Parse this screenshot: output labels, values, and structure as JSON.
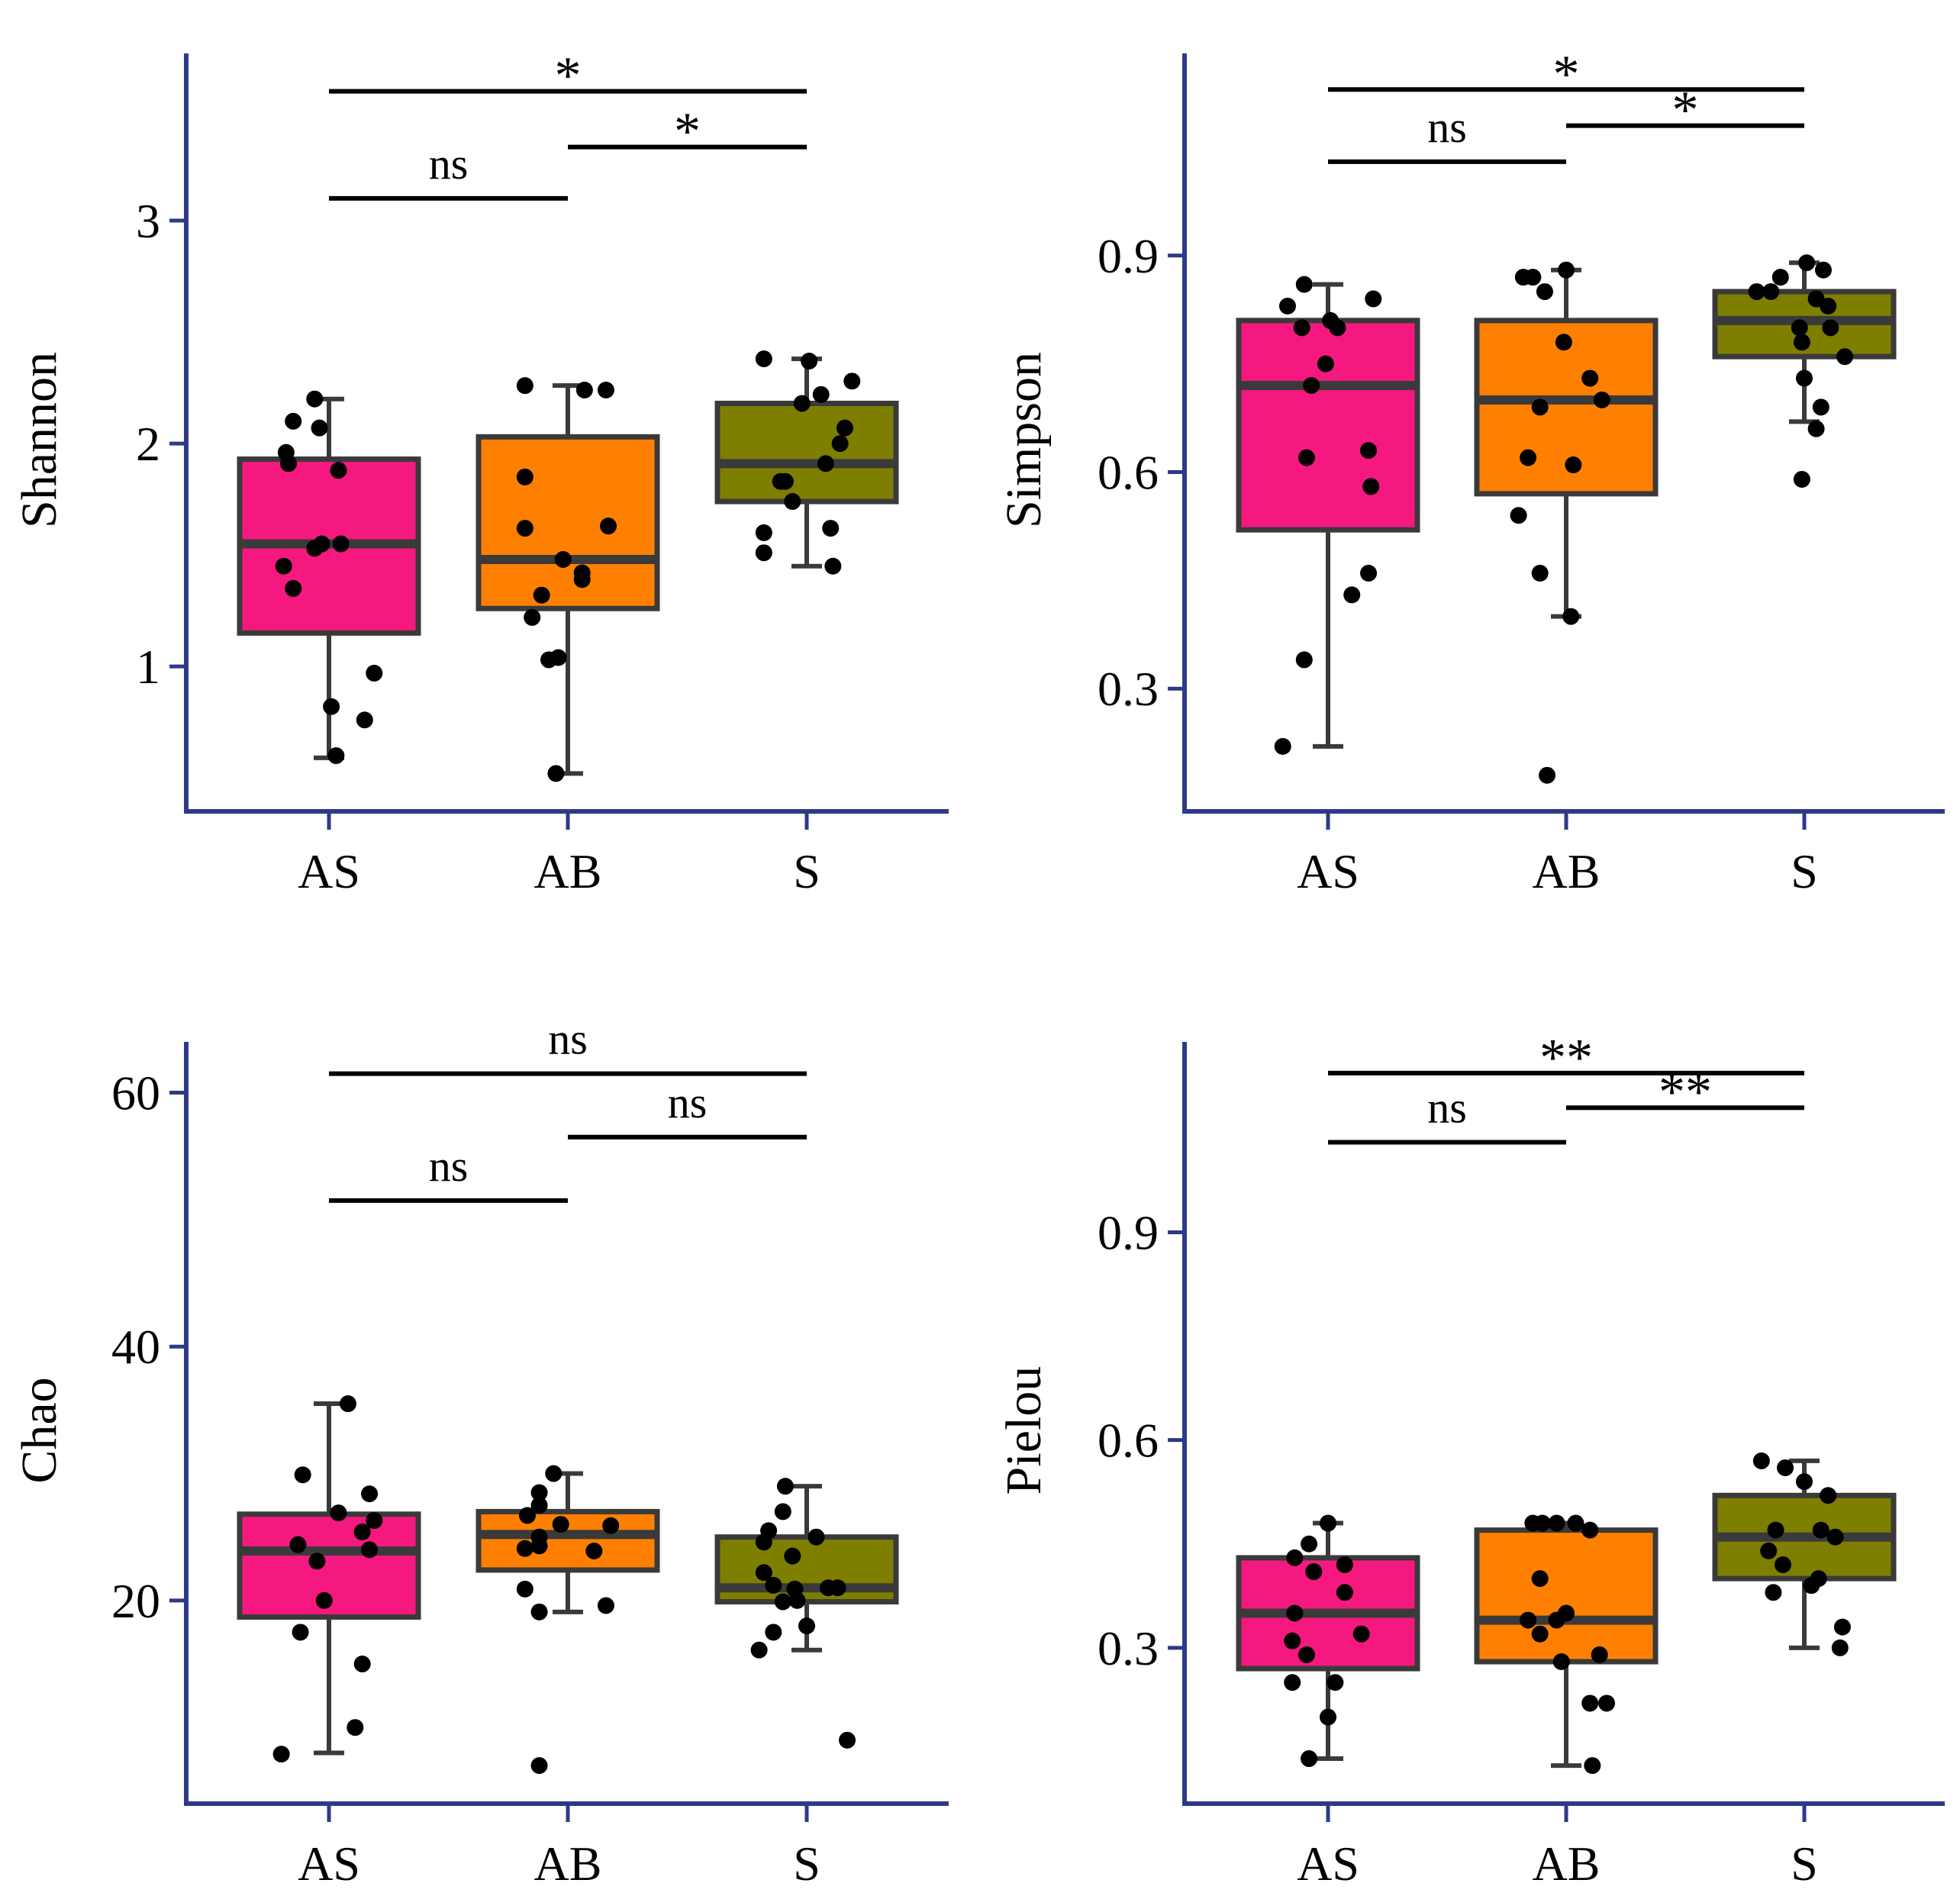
{
  "figure": {
    "accent_axis_color": "#2e3a87",
    "box_edge_color": "#3a3a3a",
    "point_color": "#000000"
  },
  "chart_data": [
    {
      "type": "box",
      "title": "",
      "xlabel": "",
      "ylabel": "Shannon",
      "ylim": [
        0.35,
        3.75
      ],
      "yticks": [
        1,
        2,
        3
      ],
      "ytick_labels": [
        "1",
        "2",
        "3"
      ],
      "categories": [
        "AS",
        "AB",
        "S"
      ],
      "colors": [
        "#f5187f",
        "#ff8000",
        "#7e7e00"
      ],
      "boxes": [
        {
          "q1": 1.15,
          "median": 1.55,
          "q3": 1.93,
          "whisker_low": 0.59,
          "whisker_high": 2.2
        },
        {
          "q1": 1.26,
          "median": 1.48,
          "q3": 2.03,
          "whisker_low": 0.52,
          "whisker_high": 2.26
        },
        {
          "q1": 1.74,
          "median": 1.91,
          "q3": 2.18,
          "whisker_low": 1.45,
          "whisker_high": 2.38
        }
      ],
      "points": [
        [
          [
            -0.17,
            1.91
          ],
          [
            -0.18,
            1.96
          ],
          [
            -0.15,
            2.1
          ],
          [
            -0.04,
            2.07
          ],
          [
            -0.06,
            2.2
          ],
          [
            0.04,
            1.88
          ],
          [
            -0.06,
            1.53
          ],
          [
            -0.03,
            1.55
          ],
          [
            0.05,
            1.55
          ],
          [
            -0.19,
            1.45
          ],
          [
            -0.15,
            1.35
          ],
          [
            0.01,
            0.82
          ],
          [
            0.15,
            0.76
          ],
          [
            0.19,
            0.97
          ],
          [
            0.03,
            0.6
          ]
        ],
        [
          [
            -0.18,
            2.26
          ],
          [
            0.07,
            2.24
          ],
          [
            0.16,
            2.24
          ],
          [
            -0.18,
            1.85
          ],
          [
            -0.18,
            1.62
          ],
          [
            0.17,
            1.63
          ],
          [
            -0.02,
            1.48
          ],
          [
            0.06,
            1.42
          ],
          [
            0.06,
            1.39
          ],
          [
            -0.11,
            1.32
          ],
          [
            -0.15,
            1.22
          ],
          [
            -0.04,
            1.04
          ],
          [
            -0.08,
            1.03
          ],
          [
            -0.05,
            0.52
          ]
        ],
        [
          [
            -0.18,
            2.38
          ],
          [
            0.01,
            2.37
          ],
          [
            0.19,
            2.28
          ],
          [
            0.06,
            2.22
          ],
          [
            -0.02,
            2.18
          ],
          [
            0.16,
            2.07
          ],
          [
            0.14,
            2.0
          ],
          [
            0.08,
            1.91
          ],
          [
            -0.11,
            1.83
          ],
          [
            -0.09,
            1.83
          ],
          [
            -0.06,
            1.74
          ],
          [
            -0.18,
            1.6
          ],
          [
            0.1,
            1.62
          ],
          [
            -0.18,
            1.51
          ],
          [
            0.11,
            1.45
          ]
        ]
      ],
      "comparisons": [
        {
          "groups": [
            0,
            1
          ],
          "y": 3.1,
          "label": "ns"
        },
        {
          "groups": [
            1,
            2
          ],
          "y": 3.33,
          "label": "*"
        },
        {
          "groups": [
            0,
            2
          ],
          "y": 3.58,
          "label": "*"
        }
      ]
    },
    {
      "type": "box",
      "title": "",
      "xlabel": "",
      "ylabel": "Simpson",
      "ylim": [
        0.13,
        1.18
      ],
      "yticks": [
        0.3,
        0.6,
        0.9
      ],
      "ytick_labels": [
        "0.3",
        "0.6",
        "0.9"
      ],
      "categories": [
        "AS",
        "AB",
        "S"
      ],
      "colors": [
        "#f5187f",
        "#ff8000",
        "#7e7e00"
      ],
      "boxes": [
        {
          "q1": 0.52,
          "median": 0.72,
          "q3": 0.81,
          "whisker_low": 0.22,
          "whisker_high": 0.86
        },
        {
          "q1": 0.57,
          "median": 0.7,
          "q3": 0.81,
          "whisker_low": 0.4,
          "whisker_high": 0.88
        },
        {
          "q1": 0.76,
          "median": 0.81,
          "q3": 0.85,
          "whisker_low": 0.67,
          "whisker_high": 0.89
        }
      ],
      "points": [
        [
          [
            -0.1,
            0.86
          ],
          [
            -0.17,
            0.83
          ],
          [
            -0.11,
            0.8
          ],
          [
            0.01,
            0.81
          ],
          [
            0.04,
            0.8
          ],
          [
            0.19,
            0.84
          ],
          [
            -0.01,
            0.75
          ],
          [
            -0.07,
            0.72
          ],
          [
            -0.09,
            0.62
          ],
          [
            0.17,
            0.63
          ],
          [
            0.18,
            0.58
          ],
          [
            0.17,
            0.46
          ],
          [
            0.1,
            0.43
          ],
          [
            -0.1,
            0.34
          ],
          [
            -0.19,
            0.22
          ]
        ],
        [
          [
            -0.18,
            0.87
          ],
          [
            -0.14,
            0.87
          ],
          [
            0.0,
            0.88
          ],
          [
            -0.01,
            0.78
          ],
          [
            -0.09,
            0.85
          ],
          [
            0.1,
            0.73
          ],
          [
            -0.11,
            0.69
          ],
          [
            0.15,
            0.7
          ],
          [
            -0.16,
            0.62
          ],
          [
            0.03,
            0.61
          ],
          [
            -0.2,
            0.54
          ],
          [
            -0.11,
            0.46
          ],
          [
            0.02,
            0.4
          ],
          [
            -0.08,
            0.18
          ]
        ],
        [
          [
            -0.1,
            0.87
          ],
          [
            0.01,
            0.89
          ],
          [
            0.08,
            0.88
          ],
          [
            -0.2,
            0.85
          ],
          [
            -0.14,
            0.85
          ],
          [
            0.05,
            0.84
          ],
          [
            0.1,
            0.83
          ],
          [
            0.11,
            0.8
          ],
          [
            -0.02,
            0.8
          ],
          [
            -0.01,
            0.78
          ],
          [
            0.17,
            0.76
          ],
          [
            0.0,
            0.73
          ],
          [
            0.07,
            0.69
          ],
          [
            0.05,
            0.66
          ],
          [
            -0.01,
            0.59
          ]
        ]
      ],
      "comparisons": [
        {
          "groups": [
            0,
            1
          ],
          "y": 1.03,
          "label": "ns"
        },
        {
          "groups": [
            1,
            2
          ],
          "y": 1.08,
          "label": "*"
        },
        {
          "groups": [
            0,
            2
          ],
          "y": 1.13,
          "label": "*"
        }
      ]
    },
    {
      "type": "box",
      "title": "",
      "xlabel": "",
      "ylabel": "Chao",
      "ylim": [
        4,
        64
      ],
      "yticks": [
        20,
        40,
        60
      ],
      "ytick_labels": [
        "20",
        "40",
        "60"
      ],
      "categories": [
        "AS",
        "AB",
        "S"
      ],
      "colors": [
        "#f5187f",
        "#ff8000",
        "#7e7e00"
      ],
      "boxes": [
        {
          "q1": 18.7,
          "median": 23.9,
          "q3": 26.8,
          "whisker_low": 8.0,
          "whisker_high": 35.5
        },
        {
          "q1": 22.4,
          "median": 25.2,
          "q3": 27.0,
          "whisker_low": 19.1,
          "whisker_high": 30.0
        },
        {
          "q1": 19.9,
          "median": 21.0,
          "q3": 25.0,
          "whisker_low": 16.1,
          "whisker_high": 29.0
        }
      ],
      "points": [
        [
          [
            0.08,
            35.5
          ],
          [
            -0.11,
            29.9
          ],
          [
            0.17,
            28.4
          ],
          [
            0.04,
            26.9
          ],
          [
            0.19,
            26.3
          ],
          [
            0.14,
            25.4
          ],
          [
            0.17,
            24.0
          ],
          [
            -0.13,
            24.4
          ],
          [
            -0.05,
            23.1
          ],
          [
            -0.02,
            20.0
          ],
          [
            -0.12,
            17.5
          ],
          [
            0.14,
            15.0
          ],
          [
            0.11,
            10.0
          ],
          [
            -0.2,
            7.9
          ]
        ],
        [
          [
            -0.06,
            30.0
          ],
          [
            -0.12,
            28.5
          ],
          [
            -0.17,
            26.7
          ],
          [
            -0.12,
            27.5
          ],
          [
            -0.03,
            26.0
          ],
          [
            0.18,
            25.9
          ],
          [
            -0.12,
            25.0
          ],
          [
            -0.12,
            24.3
          ],
          [
            -0.18,
            24.1
          ],
          [
            0.11,
            23.9
          ],
          [
            -0.18,
            20.9
          ],
          [
            0.16,
            19.6
          ],
          [
            -0.12,
            19.1
          ],
          [
            -0.12,
            7.0
          ]
        ],
        [
          [
            -0.09,
            29.0
          ],
          [
            -0.1,
            27.0
          ],
          [
            -0.16,
            25.5
          ],
          [
            -0.18,
            24.6
          ],
          [
            0.04,
            25.0
          ],
          [
            -0.06,
            23.5
          ],
          [
            -0.18,
            22.2
          ],
          [
            -0.14,
            21.2
          ],
          [
            0.09,
            21.0
          ],
          [
            0.13,
            21.0
          ],
          [
            -0.05,
            20.9
          ],
          [
            -0.04,
            20.0
          ],
          [
            -0.1,
            19.9
          ],
          [
            0.0,
            18.0
          ],
          [
            -0.14,
            17.5
          ],
          [
            -0.2,
            16.1
          ],
          [
            0.17,
            9.0
          ]
        ]
      ],
      "comparisons": [
        {
          "groups": [
            0,
            1
          ],
          "y": 51.5,
          "label": "ns"
        },
        {
          "groups": [
            1,
            2
          ],
          "y": 56.5,
          "label": "ns"
        },
        {
          "groups": [
            0,
            2
          ],
          "y": 61.5,
          "label": "ns"
        }
      ]
    },
    {
      "type": "box",
      "title": "",
      "xlabel": "",
      "ylabel": "Pielou",
      "ylim": [
        0.075,
        1.175
      ],
      "yticks": [
        0.3,
        0.6,
        0.9
      ],
      "ytick_labels": [
        "0.3",
        "0.6",
        "0.9"
      ],
      "categories": [
        "AS",
        "AB",
        "S"
      ],
      "colors": [
        "#f5187f",
        "#ff8000",
        "#7e7e00"
      ],
      "boxes": [
        {
          "q1": 0.27,
          "median": 0.35,
          "q3": 0.43,
          "whisker_low": 0.14,
          "whisker_high": 0.48
        },
        {
          "q1": 0.28,
          "median": 0.34,
          "q3": 0.47,
          "whisker_low": 0.13,
          "whisker_high": 0.48
        },
        {
          "q1": 0.4,
          "median": 0.46,
          "q3": 0.52,
          "whisker_low": 0.3,
          "whisker_high": 0.57
        }
      ],
      "points": [
        [
          [
            0.0,
            0.48
          ],
          [
            -0.08,
            0.45
          ],
          [
            -0.14,
            0.43
          ],
          [
            -0.06,
            0.41
          ],
          [
            0.07,
            0.42
          ],
          [
            0.07,
            0.38
          ],
          [
            -0.14,
            0.35
          ],
          [
            0.14,
            0.32
          ],
          [
            -0.15,
            0.31
          ],
          [
            -0.09,
            0.29
          ],
          [
            0.03,
            0.25
          ],
          [
            -0.15,
            0.25
          ],
          [
            0.0,
            0.2
          ],
          [
            -0.08,
            0.14
          ]
        ],
        [
          [
            -0.14,
            0.48
          ],
          [
            -0.1,
            0.48
          ],
          [
            -0.04,
            0.48
          ],
          [
            0.04,
            0.48
          ],
          [
            0.1,
            0.47
          ],
          [
            -0.11,
            0.4
          ],
          [
            -0.04,
            0.34
          ],
          [
            0.0,
            0.35
          ],
          [
            -0.16,
            0.34
          ],
          [
            -0.11,
            0.32
          ],
          [
            0.14,
            0.29
          ],
          [
            -0.02,
            0.28
          ],
          [
            0.1,
            0.22
          ],
          [
            0.17,
            0.22
          ],
          [
            0.11,
            0.13
          ]
        ],
        [
          [
            -0.18,
            0.57
          ],
          [
            -0.08,
            0.56
          ],
          [
            0.0,
            0.54
          ],
          [
            0.1,
            0.52
          ],
          [
            -0.12,
            0.47
          ],
          [
            0.07,
            0.47
          ],
          [
            0.13,
            0.46
          ],
          [
            -0.15,
            0.44
          ],
          [
            -0.09,
            0.42
          ],
          [
            0.03,
            0.39
          ],
          [
            0.06,
            0.4
          ],
          [
            -0.13,
            0.38
          ],
          [
            0.16,
            0.33
          ],
          [
            0.15,
            0.3
          ]
        ]
      ],
      "comparisons": [
        {
          "groups": [
            0,
            1
          ],
          "y": 1.03,
          "label": "ns"
        },
        {
          "groups": [
            1,
            2
          ],
          "y": 1.08,
          "label": "**"
        },
        {
          "groups": [
            0,
            2
          ],
          "y": 1.13,
          "label": "**"
        }
      ]
    }
  ]
}
